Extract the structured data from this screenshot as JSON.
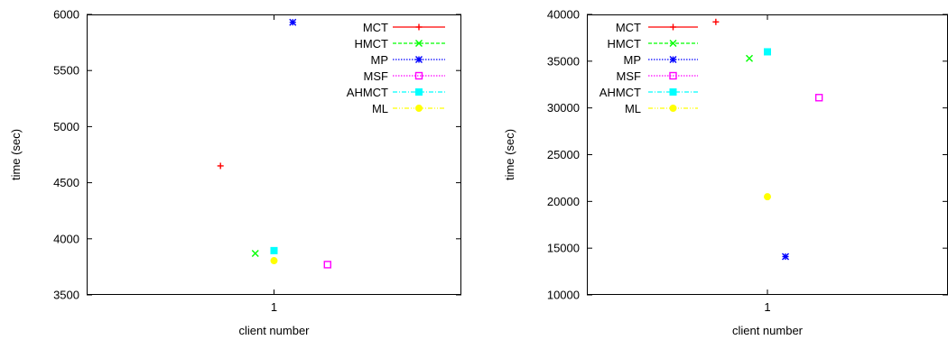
{
  "chart_data": [
    {
      "type": "scatter",
      "xlabel": "client number",
      "ylabel": "time (sec)",
      "ylim": [
        3500,
        6000
      ],
      "yticks": [
        3500,
        4000,
        4500,
        5000,
        5500,
        6000
      ],
      "xticks": [
        "1"
      ],
      "grid": false,
      "legend": "top-right",
      "series": [
        {
          "name": "MCT",
          "color": "#ff0000",
          "line": "solid",
          "marker": "plus",
          "x": 0.8,
          "y": 4650
        },
        {
          "name": "HMCT",
          "color": "#00ff00",
          "line": "dashed",
          "marker": "cross",
          "x": 0.93,
          "y": 3870
        },
        {
          "name": "MP",
          "color": "#0000ff",
          "line": "dotted",
          "marker": "star",
          "x": 1.07,
          "y": 5930
        },
        {
          "name": "MSF",
          "color": "#ff00ff",
          "line": "dotted",
          "marker": "square-open",
          "x": 1.2,
          "y": 3770
        },
        {
          "name": "AHMCT",
          "color": "#00ffff",
          "line": "dash-dot",
          "marker": "square-filled",
          "x": 1.0,
          "y": 3895
        },
        {
          "name": "ML",
          "color": "#ffff00",
          "line": "dash-dot-dot",
          "marker": "circle-filled",
          "x": 1.0,
          "y": 3805
        }
      ]
    },
    {
      "type": "scatter",
      "xlabel": "client number",
      "ylabel": "time (sec)",
      "ylim": [
        10000,
        40000
      ],
      "yticks": [
        10000,
        15000,
        20000,
        25000,
        30000,
        35000,
        40000
      ],
      "xticks": [
        "1"
      ],
      "grid": false,
      "legend": "top-left",
      "series": [
        {
          "name": "MCT",
          "color": "#ff0000",
          "line": "solid",
          "marker": "plus",
          "x": 0.8,
          "y": 39200
        },
        {
          "name": "HMCT",
          "color": "#00ff00",
          "line": "dashed",
          "marker": "cross",
          "x": 0.93,
          "y": 35300
        },
        {
          "name": "MP",
          "color": "#0000ff",
          "line": "dotted",
          "marker": "star",
          "x": 1.07,
          "y": 14100
        },
        {
          "name": "MSF",
          "color": "#ff00ff",
          "line": "dotted",
          "marker": "square-open",
          "x": 1.2,
          "y": 31100
        },
        {
          "name": "AHMCT",
          "color": "#00ffff",
          "line": "dash-dot",
          "marker": "square-filled",
          "x": 1.0,
          "y": 36000
        },
        {
          "name": "ML",
          "color": "#ffff00",
          "line": "dash-dot-dot",
          "marker": "circle-filled",
          "x": 1.0,
          "y": 20500
        }
      ]
    }
  ]
}
